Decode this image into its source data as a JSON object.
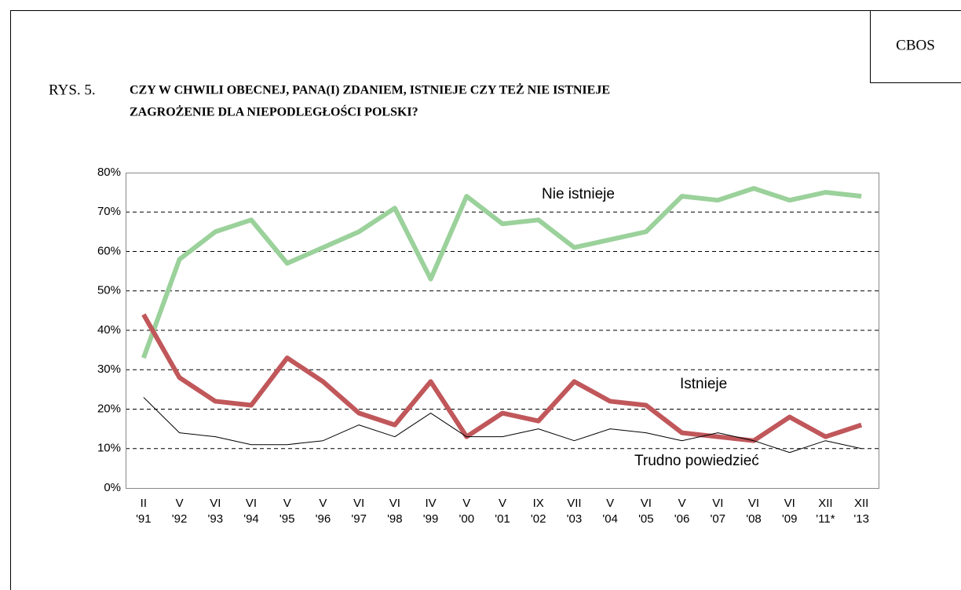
{
  "chart_data": {
    "type": "line",
    "source": "CBOS",
    "figure_label": "RYS. 5.",
    "title_lines": [
      "CZY W CHWILI OBECNEJ, PANA(I) ZDANIEM, ISTNIEJE CZY TEŻ NIE ISTNIEJE",
      "ZAGROŻENIE DLA NIEPODLEGŁOŚCI POLSKI?"
    ],
    "categories": [
      [
        "II",
        "'91"
      ],
      [
        "V",
        "'92"
      ],
      [
        "VI",
        "'93"
      ],
      [
        "VI",
        "'94"
      ],
      [
        "V",
        "'95"
      ],
      [
        "V",
        "'96"
      ],
      [
        "VI",
        "'97"
      ],
      [
        "VI",
        "'98"
      ],
      [
        "IV",
        "'99"
      ],
      [
        "V",
        "'00"
      ],
      [
        "V",
        "'01"
      ],
      [
        "IX",
        "'02"
      ],
      [
        "VII",
        "'03"
      ],
      [
        "V",
        "'04"
      ],
      [
        "VI",
        "'05"
      ],
      [
        "V",
        "'06"
      ],
      [
        "VI",
        "'07"
      ],
      [
        "VI",
        "'08"
      ],
      [
        "VI",
        "'09"
      ],
      [
        "XII",
        "'11*"
      ],
      [
        "XII",
        "'13"
      ]
    ],
    "series": [
      {
        "name": "Nie istnieje",
        "color": "#9bd19b",
        "width": 6,
        "values": [
          33,
          58,
          65,
          68,
          57,
          61,
          65,
          71,
          53,
          74,
          67,
          68,
          61,
          63,
          65,
          74,
          73,
          76,
          73,
          75,
          74
        ]
      },
      {
        "name": "Istnieje",
        "color": "#c0575a",
        "width": 6,
        "values": [
          44,
          28,
          22,
          21,
          33,
          27,
          19,
          16,
          27,
          13,
          19,
          17,
          27,
          22,
          21,
          14,
          13,
          12,
          18,
          13,
          16
        ]
      },
      {
        "name": "Trudno powiedzieć",
        "color": "#000000",
        "width": 1,
        "values": [
          23,
          14,
          13,
          11,
          11,
          12,
          16,
          13,
          19,
          13,
          13,
          15,
          12,
          15,
          14,
          12,
          14,
          12,
          9,
          12,
          10
        ]
      }
    ],
    "ylim": [
      0,
      80
    ],
    "yticks": [
      {
        "value": 0,
        "label": "0%"
      },
      {
        "value": 10,
        "label": "10%"
      },
      {
        "value": 20,
        "label": "20%"
      },
      {
        "value": 30,
        "label": "30%"
      },
      {
        "value": 40,
        "label": "40%"
      },
      {
        "value": 50,
        "label": "50%"
      },
      {
        "value": 60,
        "label": "60%"
      },
      {
        "value": 70,
        "label": "70%"
      },
      {
        "value": 80,
        "label": "80%"
      }
    ],
    "grid": true
  }
}
